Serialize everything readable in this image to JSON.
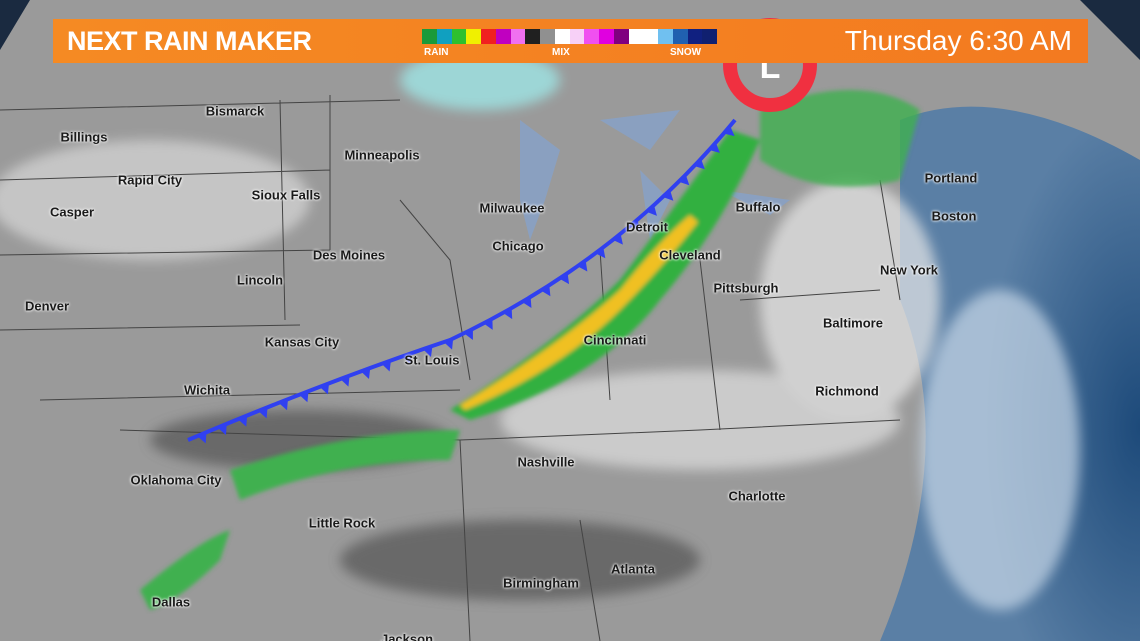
{
  "header": {
    "title": "NEXT RAIN MAKER",
    "time": "Thursday 6:30 AM",
    "legend": {
      "labels": [
        "RAIN",
        "MIX",
        "SNOW"
      ],
      "colors": [
        "#1a9a3a",
        "#10a0c0",
        "#2ec02e",
        "#f0f000",
        "#f02020",
        "#c000c0",
        "#f070f0",
        "#202020",
        "#909090",
        "#ffffff",
        "#f7d0f7",
        "#f050f0",
        "#e000e0",
        "#800080",
        "#ffffff",
        "#ffffff",
        "#70c0f0",
        "#2060b0",
        "#102080",
        "#102070"
      ]
    }
  },
  "map": {
    "colors": {
      "land": "#8c8c8c",
      "ocean": "#1f4f80",
      "front": "#3040f0",
      "low": "#f03040"
    },
    "low_symbol": "L",
    "cities": [
      "Bismarck",
      "Billings",
      "Minneapolis",
      "Rapid City",
      "Sioux Falls",
      "Casper",
      "Milwaukee",
      "Portland",
      "Boston",
      "Buffalo",
      "Detroit",
      "Chicago",
      "Des Moines",
      "Cleveland",
      "Lincoln",
      "New York",
      "Pittsburgh",
      "Denver",
      "Baltimore",
      "Kansas City",
      "Cincinnati",
      "St. Louis",
      "Wichita",
      "Richmond",
      "Nashville",
      "Oklahoma City",
      "Charlotte",
      "Little Rock",
      "Atlanta",
      "Birmingham",
      "Dallas",
      "Jackson"
    ]
  }
}
